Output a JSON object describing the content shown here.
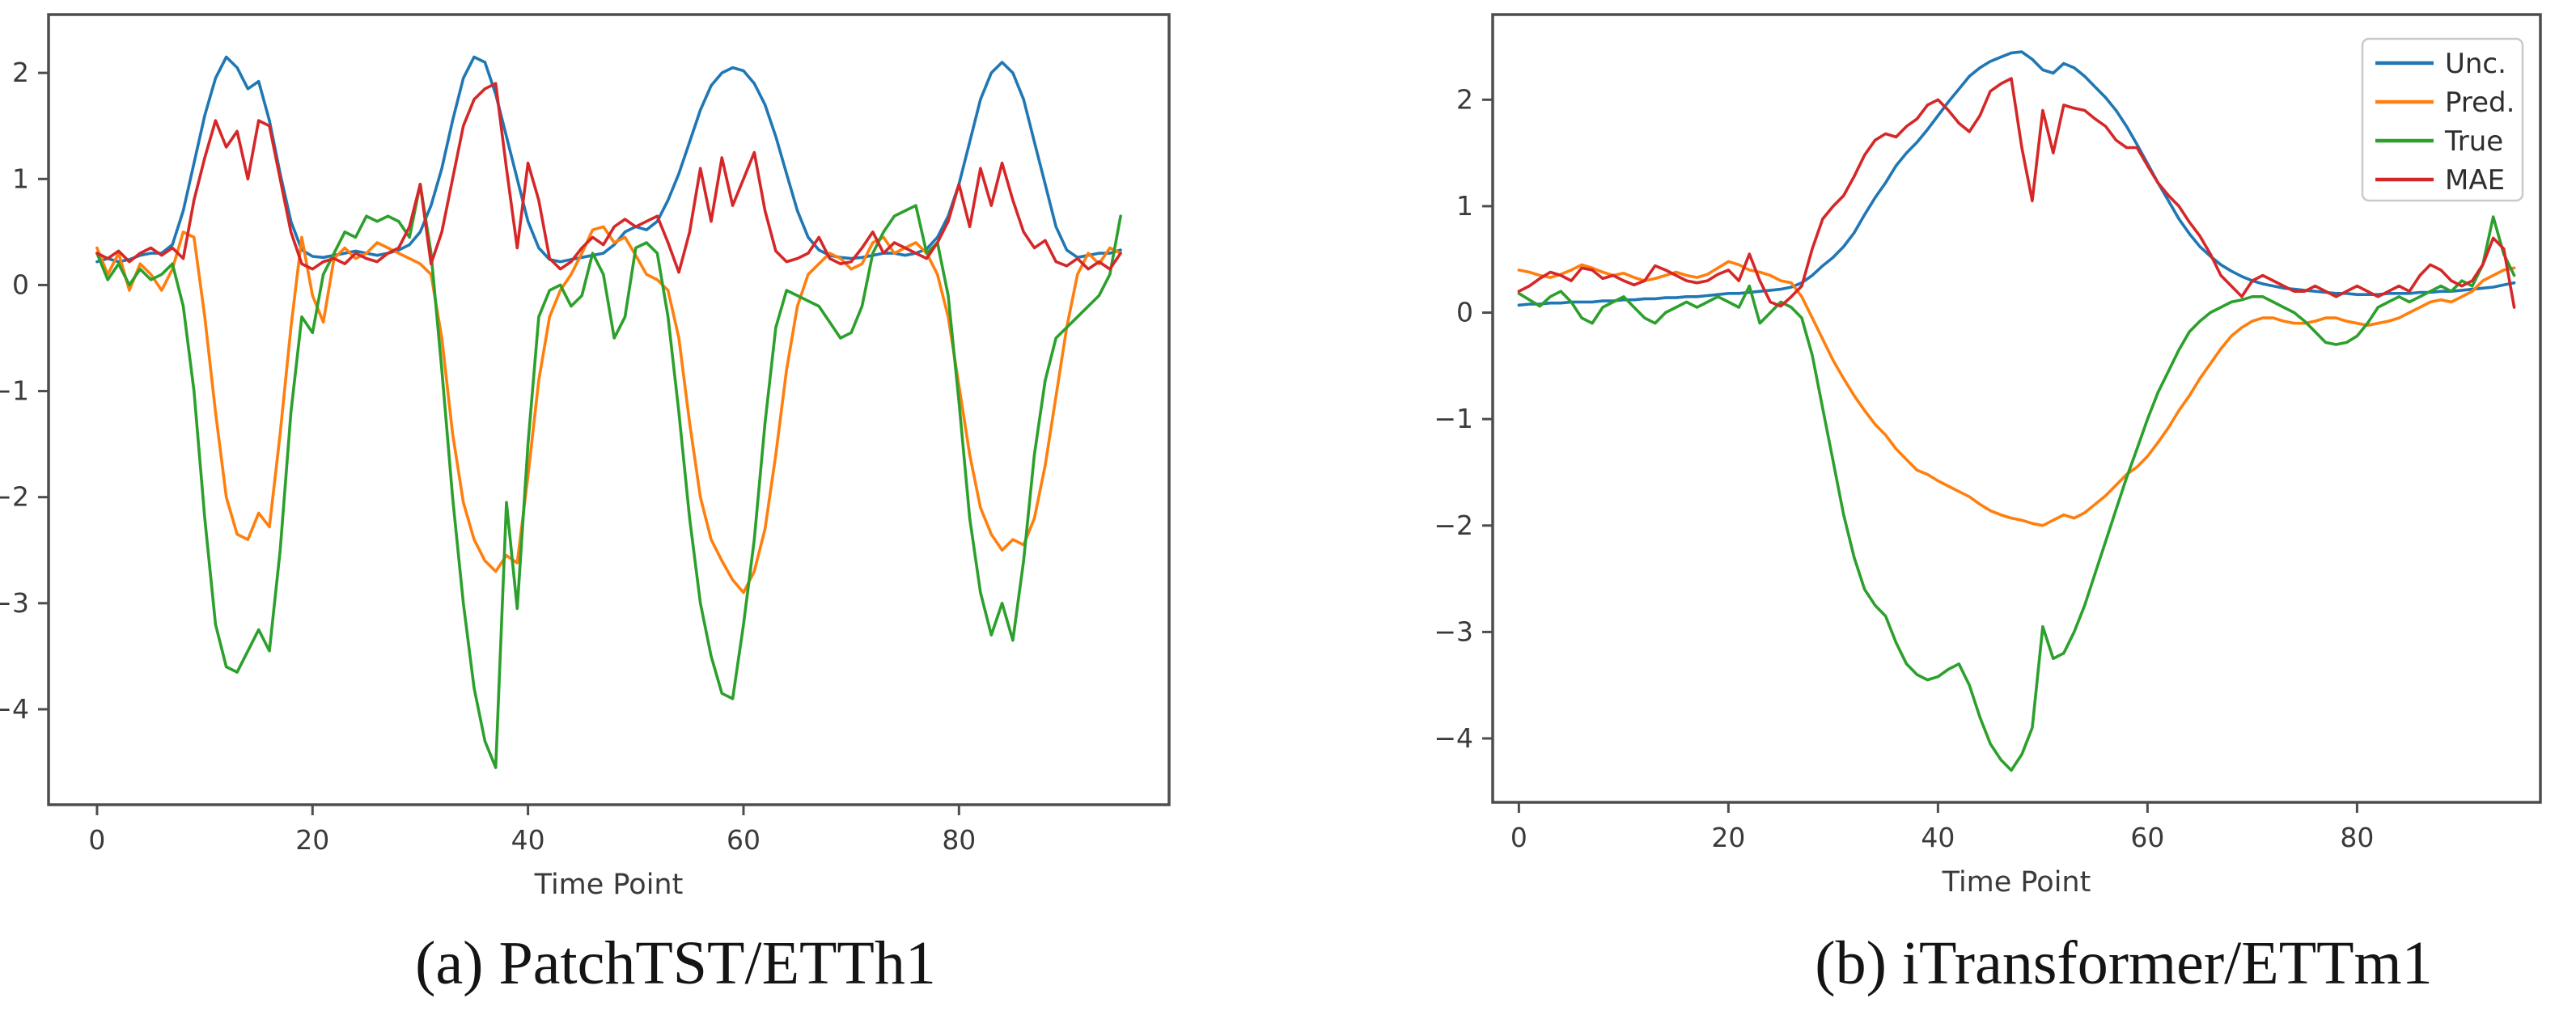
{
  "captions": {
    "a": "(a) PatchTST/ETTh1",
    "b": "(b) iTransformer/ETTm1"
  },
  "styles": {
    "background": "#ffffff",
    "frame_color": "#4d4d4d",
    "tick_color": "#4d4d4d",
    "tick_text_color": "#3a3a3a",
    "legend_border_color": "#c9c9c9",
    "legend_background": "#ffffff",
    "series_colors": {
      "Unc.": "#1f77b4",
      "Pred.": "#ff7f0e",
      "True": "#2ca02c",
      "MAE": "#d62728"
    }
  },
  "chart_data": [
    {
      "id": "a",
      "type": "line",
      "title": "",
      "caption": "(a) PatchTST/ETTh1",
      "xlabel": "Time Point",
      "ylabel": "",
      "xticks": [
        0,
        20,
        40,
        60,
        80
      ],
      "yticks": [
        2,
        1,
        0,
        -1,
        -2,
        -3,
        -4
      ],
      "xlim": [
        -4.5,
        99.5
      ],
      "ylim": [
        -4.9,
        2.55
      ],
      "x_start": 0,
      "x_step": 1,
      "grid": false,
      "legend_visible": false,
      "series": [
        {
          "name": "Unc.",
          "color": "#1f77b4",
          "values": [
            0.22,
            0.25,
            0.22,
            0.24,
            0.28,
            0.3,
            0.3,
            0.38,
            0.7,
            1.15,
            1.6,
            1.95,
            2.15,
            2.05,
            1.85,
            1.92,
            1.55,
            1.05,
            0.6,
            0.33,
            0.27,
            0.26,
            0.28,
            0.3,
            0.32,
            0.3,
            0.28,
            0.3,
            0.33,
            0.38,
            0.5,
            0.75,
            1.1,
            1.55,
            1.95,
            2.15,
            2.1,
            1.8,
            1.4,
            1.0,
            0.6,
            0.35,
            0.24,
            0.22,
            0.24,
            0.26,
            0.28,
            0.3,
            0.38,
            0.5,
            0.55,
            0.52,
            0.6,
            0.8,
            1.05,
            1.35,
            1.65,
            1.88,
            2.0,
            2.05,
            2.02,
            1.9,
            1.7,
            1.4,
            1.05,
            0.7,
            0.45,
            0.33,
            0.28,
            0.26,
            0.25,
            0.26,
            0.28,
            0.3,
            0.3,
            0.28,
            0.3,
            0.34,
            0.45,
            0.65,
            0.95,
            1.35,
            1.75,
            2.0,
            2.1,
            2.0,
            1.75,
            1.35,
            0.95,
            0.55,
            0.33,
            0.26,
            0.28,
            0.3,
            0.3,
            0.33
          ]
        },
        {
          "name": "Pred.",
          "color": "#ff7f0e",
          "values": [
            0.35,
            0.1,
            0.3,
            -0.05,
            0.2,
            0.1,
            -0.05,
            0.15,
            0.5,
            0.45,
            -0.3,
            -1.2,
            -2.0,
            -2.35,
            -2.4,
            -2.15,
            -2.28,
            -1.4,
            -0.4,
            0.45,
            -0.1,
            -0.35,
            0.25,
            0.35,
            0.25,
            0.3,
            0.4,
            0.35,
            0.3,
            0.25,
            0.2,
            0.1,
            -0.5,
            -1.4,
            -2.05,
            -2.4,
            -2.6,
            -2.7,
            -2.55,
            -2.62,
            -1.8,
            -0.9,
            -0.3,
            -0.05,
            0.1,
            0.3,
            0.52,
            0.55,
            0.4,
            0.45,
            0.28,
            0.1,
            0.05,
            -0.05,
            -0.5,
            -1.3,
            -2.0,
            -2.4,
            -2.6,
            -2.78,
            -2.9,
            -2.7,
            -2.3,
            -1.6,
            -0.8,
            -0.2,
            0.1,
            0.2,
            0.3,
            0.25,
            0.15,
            0.2,
            0.4,
            0.45,
            0.3,
            0.35,
            0.4,
            0.3,
            0.1,
            -0.3,
            -0.95,
            -1.6,
            -2.1,
            -2.35,
            -2.5,
            -2.4,
            -2.45,
            -2.2,
            -1.7,
            -1.05,
            -0.4,
            0.1,
            0.3,
            0.2,
            0.35,
            0.3
          ]
        },
        {
          "name": "True",
          "color": "#2ca02c",
          "values": [
            0.3,
            0.05,
            0.2,
            0.0,
            0.15,
            0.05,
            0.1,
            0.2,
            -0.2,
            -1.0,
            -2.2,
            -3.2,
            -3.6,
            -3.65,
            -3.45,
            -3.25,
            -3.45,
            -2.5,
            -1.2,
            -0.3,
            -0.45,
            0.1,
            0.3,
            0.5,
            0.45,
            0.65,
            0.6,
            0.65,
            0.6,
            0.45,
            0.95,
            0.3,
            -0.8,
            -2.0,
            -3.0,
            -3.8,
            -4.3,
            -4.55,
            -2.05,
            -3.05,
            -1.5,
            -0.3,
            -0.05,
            0.0,
            -0.2,
            -0.1,
            0.3,
            0.1,
            -0.5,
            -0.3,
            0.35,
            0.4,
            0.3,
            -0.3,
            -1.2,
            -2.2,
            -3.0,
            -3.5,
            -3.85,
            -3.9,
            -3.2,
            -2.4,
            -1.3,
            -0.4,
            -0.05,
            -0.1,
            -0.15,
            -0.2,
            -0.35,
            -0.5,
            -0.45,
            -0.2,
            0.3,
            0.5,
            0.65,
            0.7,
            0.75,
            0.3,
            0.4,
            -0.1,
            -1.1,
            -2.2,
            -2.9,
            -3.3,
            -3.0,
            -3.35,
            -2.6,
            -1.6,
            -0.9,
            -0.5,
            -0.4,
            -0.3,
            -0.2,
            -0.1,
            0.1,
            0.65
          ]
        },
        {
          "name": "MAE",
          "color": "#d62728",
          "values": [
            0.3,
            0.25,
            0.32,
            0.22,
            0.3,
            0.35,
            0.28,
            0.35,
            0.25,
            0.8,
            1.2,
            1.55,
            1.3,
            1.45,
            1.0,
            1.55,
            1.5,
            1.0,
            0.5,
            0.2,
            0.15,
            0.22,
            0.25,
            0.2,
            0.3,
            0.25,
            0.22,
            0.3,
            0.35,
            0.55,
            0.95,
            0.2,
            0.5,
            1.0,
            1.5,
            1.75,
            1.85,
            1.9,
            1.1,
            0.35,
            1.15,
            0.8,
            0.25,
            0.15,
            0.22,
            0.35,
            0.45,
            0.38,
            0.55,
            0.62,
            0.55,
            0.6,
            0.65,
            0.4,
            0.12,
            0.5,
            1.1,
            0.6,
            1.2,
            0.75,
            1.0,
            1.25,
            0.7,
            0.32,
            0.22,
            0.25,
            0.3,
            0.45,
            0.25,
            0.2,
            0.22,
            0.35,
            0.5,
            0.3,
            0.4,
            0.35,
            0.3,
            0.25,
            0.4,
            0.6,
            0.95,
            0.55,
            1.1,
            0.75,
            1.15,
            0.8,
            0.5,
            0.35,
            0.42,
            0.22,
            0.18,
            0.25,
            0.15,
            0.22,
            0.15,
            0.3
          ]
        }
      ]
    },
    {
      "id": "b",
      "type": "line",
      "title": "",
      "caption": "(b) iTransformer/ETTm1",
      "xlabel": "Time Point",
      "ylabel": "",
      "xticks": [
        0,
        20,
        40,
        60,
        80
      ],
      "yticks": [
        2,
        1,
        0,
        -1,
        -2,
        -3,
        -4
      ],
      "xlim": [
        -2.5,
        97.5
      ],
      "ylim": [
        -4.6,
        2.8
      ],
      "x_start": 0,
      "x_step": 1,
      "grid": false,
      "legend_visible": true,
      "legend_loc": "upper right",
      "legend_labels": [
        "Unc.",
        "Pred.",
        "True",
        "MAE"
      ],
      "series": [
        {
          "name": "Unc.",
          "color": "#1f77b4",
          "values": [
            0.07,
            0.08,
            0.08,
            0.09,
            0.09,
            0.1,
            0.1,
            0.1,
            0.11,
            0.11,
            0.12,
            0.12,
            0.13,
            0.13,
            0.14,
            0.14,
            0.15,
            0.15,
            0.16,
            0.17,
            0.18,
            0.18,
            0.19,
            0.2,
            0.21,
            0.22,
            0.24,
            0.28,
            0.35,
            0.44,
            0.52,
            0.62,
            0.75,
            0.92,
            1.08,
            1.22,
            1.38,
            1.5,
            1.6,
            1.72,
            1.85,
            1.98,
            2.1,
            2.22,
            2.3,
            2.36,
            2.4,
            2.44,
            2.45,
            2.38,
            2.28,
            2.25,
            2.34,
            2.3,
            2.22,
            2.12,
            2.02,
            1.9,
            1.75,
            1.58,
            1.4,
            1.22,
            1.05,
            0.88,
            0.74,
            0.62,
            0.53,
            0.45,
            0.39,
            0.34,
            0.3,
            0.27,
            0.25,
            0.23,
            0.22,
            0.21,
            0.2,
            0.19,
            0.18,
            0.18,
            0.17,
            0.17,
            0.17,
            0.18,
            0.18,
            0.18,
            0.19,
            0.19,
            0.2,
            0.2,
            0.21,
            0.22,
            0.23,
            0.24,
            0.26,
            0.28
          ]
        },
        {
          "name": "Pred.",
          "color": "#ff7f0e",
          "values": [
            0.4,
            0.38,
            0.35,
            0.33,
            0.36,
            0.4,
            0.45,
            0.42,
            0.38,
            0.35,
            0.37,
            0.33,
            0.3,
            0.32,
            0.35,
            0.38,
            0.35,
            0.33,
            0.36,
            0.42,
            0.48,
            0.45,
            0.4,
            0.38,
            0.35,
            0.3,
            0.28,
            0.15,
            -0.05,
            -0.25,
            -0.45,
            -0.62,
            -0.78,
            -0.92,
            -1.05,
            -1.15,
            -1.28,
            -1.38,
            -1.48,
            -1.52,
            -1.58,
            -1.63,
            -1.68,
            -1.73,
            -1.8,
            -1.86,
            -1.9,
            -1.93,
            -1.95,
            -1.98,
            -2.0,
            -1.95,
            -1.9,
            -1.93,
            -1.88,
            -1.8,
            -1.72,
            -1.62,
            -1.52,
            -1.45,
            -1.35,
            -1.22,
            -1.08,
            -0.92,
            -0.78,
            -0.62,
            -0.48,
            -0.34,
            -0.22,
            -0.14,
            -0.08,
            -0.05,
            -0.05,
            -0.08,
            -0.1,
            -0.1,
            -0.08,
            -0.05,
            -0.05,
            -0.08,
            -0.1,
            -0.12,
            -0.1,
            -0.08,
            -0.05,
            0.0,
            0.05,
            0.1,
            0.12,
            0.1,
            0.15,
            0.2,
            0.3,
            0.35,
            0.4,
            0.42
          ]
        },
        {
          "name": "True",
          "color": "#2ca02c",
          "values": [
            0.18,
            0.12,
            0.06,
            0.15,
            0.2,
            0.1,
            -0.05,
            -0.1,
            0.05,
            0.1,
            0.15,
            0.05,
            -0.05,
            -0.1,
            0.0,
            0.05,
            0.1,
            0.05,
            0.1,
            0.15,
            0.1,
            0.05,
            0.25,
            -0.1,
            0.0,
            0.1,
            0.05,
            -0.05,
            -0.4,
            -0.9,
            -1.4,
            -1.9,
            -2.3,
            -2.6,
            -2.75,
            -2.85,
            -3.1,
            -3.3,
            -3.4,
            -3.45,
            -3.42,
            -3.35,
            -3.3,
            -3.5,
            -3.8,
            -4.05,
            -4.2,
            -4.3,
            -4.15,
            -3.9,
            -2.95,
            -3.25,
            -3.2,
            -3.0,
            -2.75,
            -2.45,
            -2.15,
            -1.85,
            -1.55,
            -1.28,
            -1.0,
            -0.75,
            -0.55,
            -0.35,
            -0.18,
            -0.08,
            0.0,
            0.05,
            0.1,
            0.12,
            0.15,
            0.15,
            0.1,
            0.05,
            0.0,
            -0.08,
            -0.18,
            -0.28,
            -0.3,
            -0.28,
            -0.22,
            -0.1,
            0.05,
            0.1,
            0.15,
            0.1,
            0.15,
            0.2,
            0.25,
            0.2,
            0.3,
            0.25,
            0.45,
            0.9,
            0.55,
            0.35
          ]
        },
        {
          "name": "MAE",
          "color": "#d62728",
          "values": [
            0.2,
            0.25,
            0.32,
            0.38,
            0.35,
            0.3,
            0.42,
            0.4,
            0.32,
            0.35,
            0.3,
            0.26,
            0.3,
            0.44,
            0.4,
            0.35,
            0.3,
            0.28,
            0.3,
            0.36,
            0.4,
            0.3,
            0.55,
            0.3,
            0.1,
            0.06,
            0.15,
            0.25,
            0.6,
            0.88,
            1.0,
            1.1,
            1.28,
            1.48,
            1.62,
            1.68,
            1.65,
            1.75,
            1.82,
            1.95,
            2.0,
            1.9,
            1.78,
            1.7,
            1.85,
            2.08,
            2.15,
            2.2,
            1.55,
            1.05,
            1.9,
            1.5,
            1.95,
            1.92,
            1.9,
            1.82,
            1.75,
            1.62,
            1.55,
            1.55,
            1.38,
            1.22,
            1.1,
            1.0,
            0.85,
            0.72,
            0.55,
            0.35,
            0.25,
            0.15,
            0.3,
            0.35,
            0.3,
            0.25,
            0.2,
            0.2,
            0.25,
            0.2,
            0.15,
            0.2,
            0.25,
            0.2,
            0.15,
            0.2,
            0.25,
            0.2,
            0.35,
            0.45,
            0.4,
            0.3,
            0.25,
            0.3,
            0.45,
            0.7,
            0.6,
            0.05
          ]
        }
      ]
    }
  ]
}
